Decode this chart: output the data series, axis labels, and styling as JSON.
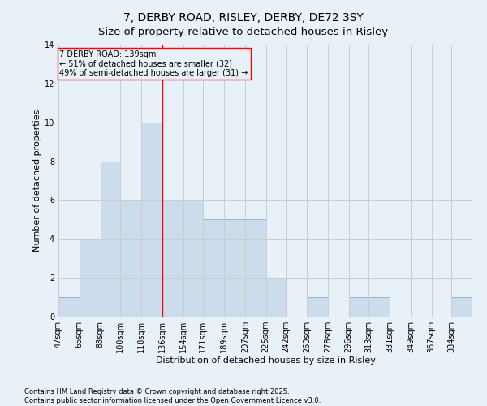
{
  "title_line1": "7, DERBY ROAD, RISLEY, DERBY, DE72 3SY",
  "title_line2": "Size of property relative to detached houses in Risley",
  "xlabel": "Distribution of detached houses by size in Risley",
  "ylabel": "Number of detached properties",
  "bar_edges": [
    47,
    65,
    83,
    100,
    118,
    136,
    154,
    171,
    189,
    207,
    225,
    242,
    260,
    278,
    296,
    313,
    331,
    349,
    367,
    384,
    402
  ],
  "bar_heights": [
    1,
    4,
    8,
    6,
    10,
    6,
    6,
    5,
    5,
    5,
    2,
    0,
    1,
    0,
    1,
    1,
    0,
    0,
    0,
    1
  ],
  "bar_color": "#ccdcec",
  "bar_edgecolor": "#8aacc8",
  "vline_x": 136,
  "vline_color": "red",
  "annotation_box_text": "7 DERBY ROAD: 139sqm\n← 51% of detached houses are smaller (32)\n49% of semi-detached houses are larger (31) →",
  "ylim": [
    0,
    14
  ],
  "yticks": [
    0,
    2,
    4,
    6,
    8,
    10,
    12,
    14
  ],
  "grid_color": "#cccccc",
  "bg_color": "#e8f0f8",
  "footer_text": "Contains HM Land Registry data © Crown copyright and database right 2025.\nContains public sector information licensed under the Open Government Licence v3.0.",
  "title_fontsize": 10,
  "subtitle_fontsize": 9.5,
  "axis_label_fontsize": 8,
  "tick_fontsize": 7,
  "annotation_fontsize": 7,
  "footer_fontsize": 6
}
